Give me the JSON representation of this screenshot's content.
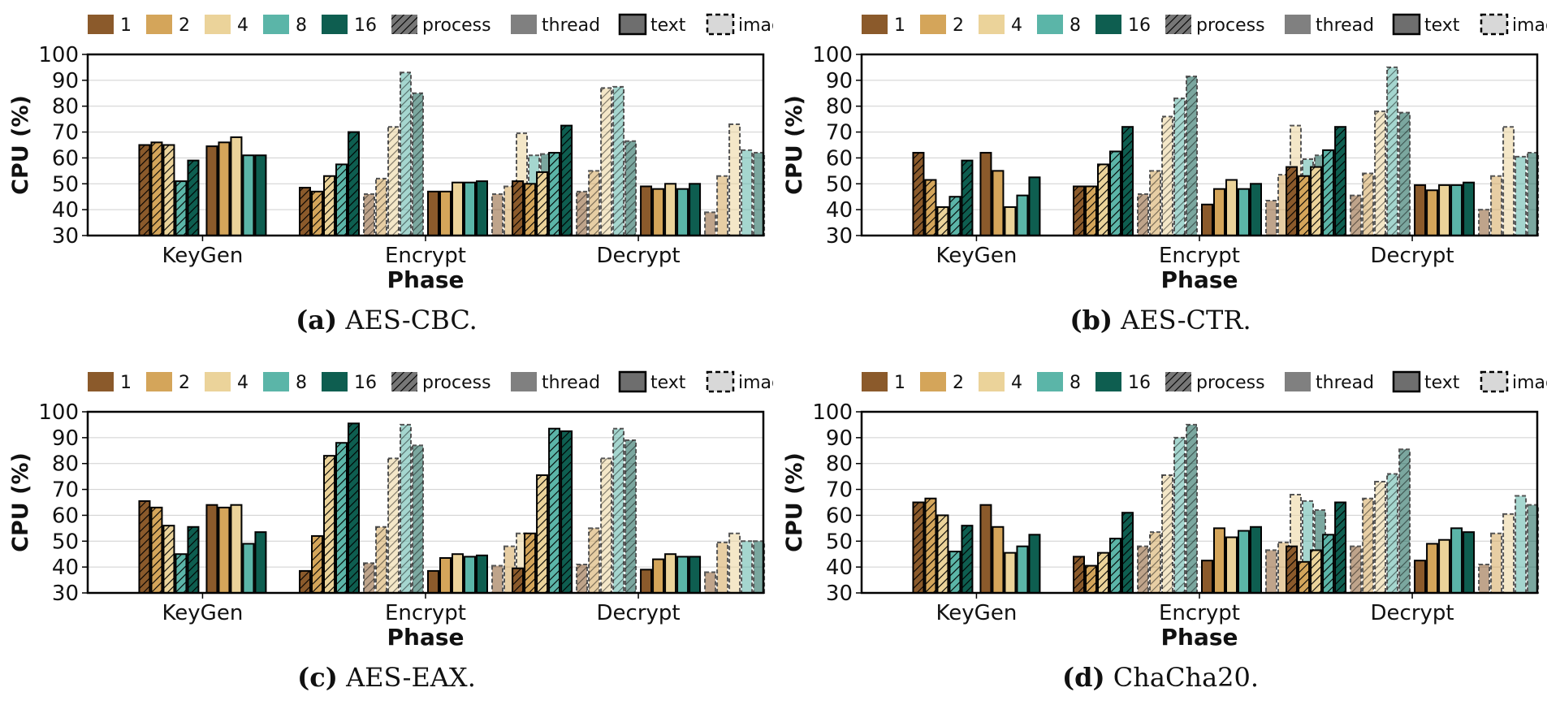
{
  "figure": {
    "shared_legend": {
      "thread_counts": [
        {
          "label": "1",
          "color": "#8B5A2B"
        },
        {
          "label": "2",
          "color": "#D4A55A"
        },
        {
          "label": "4",
          "color": "#EBD39A"
        },
        {
          "label": "8",
          "color": "#5BB5A8"
        },
        {
          "label": "16",
          "color": "#0E5E50"
        }
      ],
      "styles": [
        "process",
        "thread",
        "text",
        "image"
      ]
    }
  },
  "chart_data": [
    {
      "type": "bar",
      "panel_tag": "(a)",
      "caption": "AES-CBC.",
      "xlabel": "Phase",
      "ylabel": "CPU (%)",
      "ylim": [
        30,
        100
      ],
      "yticks": [
        30,
        40,
        50,
        60,
        70,
        80,
        90,
        100
      ],
      "grid": true,
      "legend_position": "top",
      "categories": [
        "KeyGen",
        "Encrypt",
        "Decrypt"
      ],
      "groups": [
        {
          "phase": "KeyGen",
          "bars": [
            {
              "mode": "process",
              "series": [
                65,
                66,
                65,
                51,
                59
              ]
            },
            {
              "mode": "thread",
              "series": [
                64.5,
                66,
                68,
                61,
                61
              ]
            }
          ]
        },
        {
          "phase": "Encrypt",
          "bars": [
            {
              "mode": "process text",
              "series": [
                48.5,
                47,
                53,
                57.5,
                70
              ]
            },
            {
              "mode": "process image",
              "series": [
                46,
                52,
                72,
                93,
                85
              ]
            },
            {
              "mode": "thread text",
              "series": [
                47,
                47,
                50.5,
                50.5,
                51
              ]
            },
            {
              "mode": "thread image",
              "series": [
                46,
                49,
                69.5,
                61,
                61.5
              ]
            }
          ]
        },
        {
          "phase": "Decrypt",
          "bars": [
            {
              "mode": "process text",
              "series": [
                51,
                50,
                54.5,
                62,
                72.5
              ]
            },
            {
              "mode": "process image",
              "series": [
                47,
                55,
                87,
                87.5,
                66.5
              ]
            },
            {
              "mode": "thread text",
              "series": [
                49,
                48,
                50,
                48,
                50
              ]
            },
            {
              "mode": "thread image",
              "series": [
                39,
                53,
                73,
                63,
                62
              ]
            }
          ]
        }
      ]
    },
    {
      "type": "bar",
      "panel_tag": "(b)",
      "caption": "AES-CTR.",
      "xlabel": "Phase",
      "ylabel": "CPU (%)",
      "ylim": [
        30,
        100
      ],
      "yticks": [
        30,
        40,
        50,
        60,
        70,
        80,
        90,
        100
      ],
      "grid": true,
      "legend_position": "top",
      "categories": [
        "KeyGen",
        "Encrypt",
        "Decrypt"
      ],
      "groups": [
        {
          "phase": "KeyGen",
          "bars": [
            {
              "mode": "process",
              "series": [
                62,
                51.5,
                41,
                45,
                59
              ]
            },
            {
              "mode": "thread",
              "series": [
                62,
                55,
                41,
                45.5,
                52.5
              ]
            }
          ]
        },
        {
          "phase": "Encrypt",
          "bars": [
            {
              "mode": "process text",
              "series": [
                49,
                49,
                57.5,
                62.5,
                72
              ]
            },
            {
              "mode": "process image",
              "series": [
                46,
                55,
                76,
                83,
                91.5
              ]
            },
            {
              "mode": "thread text",
              "series": [
                42,
                48,
                51.5,
                48,
                50
              ]
            },
            {
              "mode": "thread image",
              "series": [
                43.5,
                53.5,
                72.5,
                59.5,
                61
              ]
            }
          ]
        },
        {
          "phase": "Decrypt",
          "bars": [
            {
              "mode": "process text",
              "series": [
                56.5,
                53,
                56.5,
                63,
                72
              ]
            },
            {
              "mode": "process image",
              "series": [
                45.5,
                54,
                78,
                95,
                77.5
              ]
            },
            {
              "mode": "thread text",
              "series": [
                49.5,
                47.5,
                49.5,
                49.5,
                50.5
              ]
            },
            {
              "mode": "thread image",
              "series": [
                40,
                53,
                72,
                60.5,
                62
              ]
            }
          ]
        }
      ]
    },
    {
      "type": "bar",
      "panel_tag": "(c)",
      "caption": "AES-EAX.",
      "xlabel": "Phase",
      "ylabel": "CPU (%)",
      "ylim": [
        30,
        100
      ],
      "yticks": [
        30,
        40,
        50,
        60,
        70,
        80,
        90,
        100
      ],
      "grid": true,
      "legend_position": "top",
      "categories": [
        "KeyGen",
        "Encrypt",
        "Decrypt"
      ],
      "groups": [
        {
          "phase": "KeyGen",
          "bars": [
            {
              "mode": "process",
              "series": [
                65.5,
                63,
                56,
                45,
                55.5
              ]
            },
            {
              "mode": "thread",
              "series": [
                64,
                63,
                64,
                49,
                53.5
              ]
            }
          ]
        },
        {
          "phase": "Encrypt",
          "bars": [
            {
              "mode": "process text",
              "series": [
                38.5,
                52,
                83,
                88,
                95.5
              ]
            },
            {
              "mode": "process image",
              "series": [
                41.5,
                55.5,
                82,
                95,
                87
              ]
            },
            {
              "mode": "thread text",
              "series": [
                38.5,
                43.5,
                45,
                44,
                44.5
              ]
            },
            {
              "mode": "thread image",
              "series": [
                40.5,
                48,
                53,
                50,
                50
              ]
            }
          ]
        },
        {
          "phase": "Decrypt",
          "bars": [
            {
              "mode": "process text",
              "series": [
                39.5,
                53,
                75.5,
                93.5,
                92.5
              ]
            },
            {
              "mode": "process image",
              "series": [
                41,
                55,
                82,
                93.5,
                89
              ]
            },
            {
              "mode": "thread text",
              "series": [
                39,
                43,
                45,
                44,
                44
              ]
            },
            {
              "mode": "thread image",
              "series": [
                38,
                49.5,
                53,
                50,
                50
              ]
            }
          ]
        }
      ]
    },
    {
      "type": "bar",
      "panel_tag": "(d)",
      "caption": "ChaCha20.",
      "xlabel": "Phase",
      "ylabel": "CPU (%)",
      "ylim": [
        30,
        100
      ],
      "yticks": [
        30,
        40,
        50,
        60,
        70,
        80,
        90,
        100
      ],
      "grid": true,
      "legend_position": "top",
      "categories": [
        "KeyGen",
        "Encrypt",
        "Decrypt"
      ],
      "groups": [
        {
          "phase": "KeyGen",
          "bars": [
            {
              "mode": "process",
              "series": [
                65,
                66.5,
                60,
                46,
                56
              ]
            },
            {
              "mode": "thread",
              "series": [
                64,
                55.5,
                45.5,
                48,
                52.5
              ]
            }
          ]
        },
        {
          "phase": "Encrypt",
          "bars": [
            {
              "mode": "process text",
              "series": [
                44,
                40.5,
                45.5,
                51,
                61
              ]
            },
            {
              "mode": "process image",
              "series": [
                48,
                53.5,
                75.5,
                90,
                95
              ]
            },
            {
              "mode": "thread text",
              "series": [
                42.5,
                55,
                51.5,
                54,
                55.5
              ]
            },
            {
              "mode": "thread image",
              "series": [
                46.5,
                49.5,
                68,
                65.5,
                62
              ]
            }
          ]
        },
        {
          "phase": "Decrypt",
          "bars": [
            {
              "mode": "process text",
              "series": [
                48,
                42,
                46.5,
                52.5,
                65
              ]
            },
            {
              "mode": "process image",
              "series": [
                48,
                66.5,
                73,
                76,
                85.5
              ]
            },
            {
              "mode": "thread text",
              "series": [
                42.5,
                49,
                50.5,
                55,
                53.5
              ]
            },
            {
              "mode": "thread image",
              "series": [
                41,
                53,
                60.5,
                67.5,
                64
              ]
            }
          ]
        }
      ]
    }
  ]
}
